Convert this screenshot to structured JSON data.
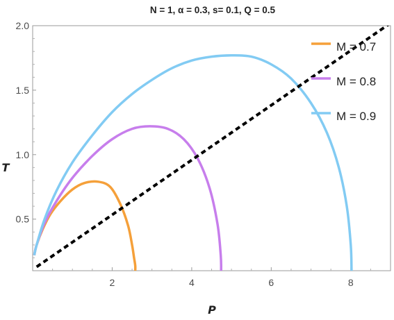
{
  "chart_data": {
    "type": "line",
    "title": "N = 1, α = 0.3, s= 0.1, Q = 0.5",
    "xlabel": "P",
    "ylabel": "T",
    "xlim": [
      0,
      9
    ],
    "ylim": [
      0.1,
      2.0
    ],
    "x_ticks": [
      "2",
      "4",
      "6",
      "8"
    ],
    "y_ticks": [
      "0.5",
      "1.0",
      "1.5",
      "2.0"
    ],
    "legend_position": "top-right",
    "series": [
      {
        "name": "M = 0.7",
        "color": "#f5a03a",
        "x": [
          0.04,
          0.1,
          0.25,
          0.45,
          0.7,
          1.0,
          1.3,
          1.65,
          1.95,
          2.2,
          2.4,
          2.5,
          2.55,
          2.58,
          2.58
        ],
        "y": [
          0.22,
          0.3,
          0.42,
          0.54,
          0.64,
          0.73,
          0.78,
          0.79,
          0.75,
          0.62,
          0.45,
          0.3,
          0.2,
          0.14,
          0.1
        ]
      },
      {
        "name": "M = 0.8",
        "color": "#c77eec",
        "x": [
          0.04,
          0.1,
          0.3,
          0.6,
          1.0,
          1.5,
          2.0,
          2.5,
          2.95,
          3.4,
          3.8,
          4.15,
          4.45,
          4.65,
          4.73,
          4.74
        ],
        "y": [
          0.22,
          0.3,
          0.47,
          0.64,
          0.82,
          0.99,
          1.12,
          1.2,
          1.22,
          1.2,
          1.12,
          0.97,
          0.74,
          0.46,
          0.22,
          0.1
        ]
      },
      {
        "name": "M = 0.9",
        "color": "#82cbf3",
        "x": [
          0.04,
          0.1,
          0.3,
          0.6,
          1.0,
          1.5,
          2.0,
          2.5,
          3.0,
          3.5,
          4.0,
          4.5,
          5.0,
          5.5,
          6.0,
          6.5,
          7.0,
          7.4,
          7.7,
          7.9,
          8.0,
          8.02
        ],
        "y": [
          0.22,
          0.3,
          0.5,
          0.72,
          0.94,
          1.15,
          1.33,
          1.47,
          1.58,
          1.67,
          1.73,
          1.76,
          1.77,
          1.76,
          1.7,
          1.59,
          1.4,
          1.17,
          0.9,
          0.6,
          0.3,
          0.1
        ]
      },
      {
        "name": "",
        "color": "#000000",
        "dashed": true,
        "x": [
          0.1,
          9.0
        ],
        "y": [
          0.13,
          2.02
        ]
      }
    ]
  }
}
